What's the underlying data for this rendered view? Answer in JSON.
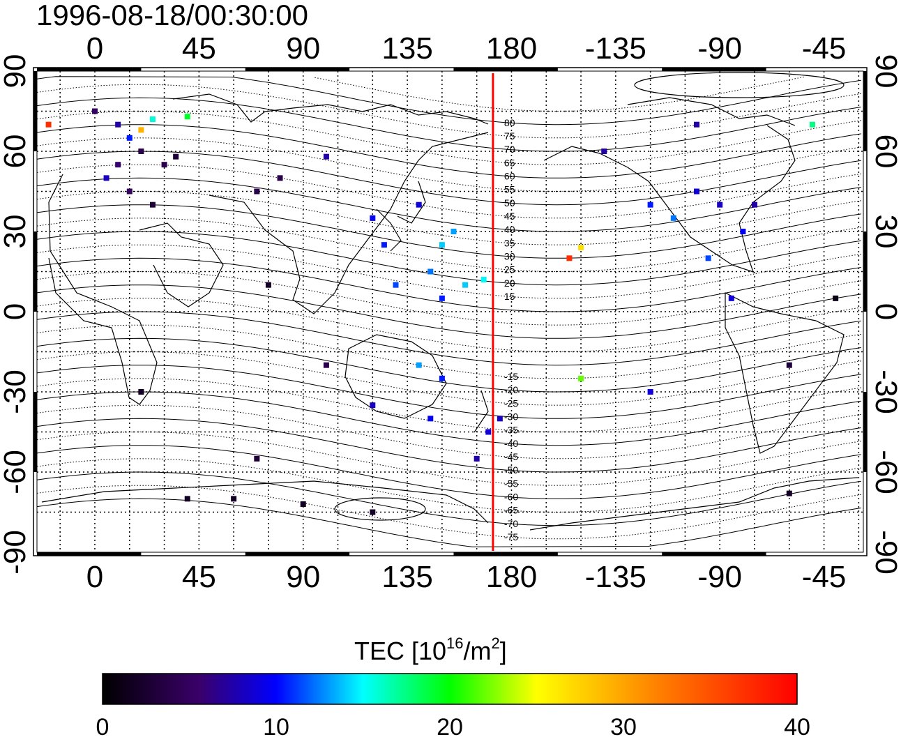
{
  "title": "1996-08-18/00:30:00",
  "axes": {
    "lon_ticks": [
      "0",
      "45",
      "90",
      "135",
      "180",
      "-135",
      "-90",
      "-45"
    ],
    "lat_ticks": [
      "90",
      "60",
      "30",
      "0",
      "-30",
      "-60",
      "-90"
    ],
    "lon_range": [
      -25,
      332
    ],
    "lat_range": [
      -90,
      90
    ],
    "grid": "dotted, 15 degree spacing"
  },
  "meridian_marker": {
    "longitude": 172,
    "color": "#ff0000"
  },
  "contour_labels": [
    "80",
    "75",
    "70",
    "65",
    "60",
    "55",
    "50",
    "45",
    "40",
    "35",
    "30",
    "25",
    "20",
    "15",
    "-15",
    "-20",
    "-25",
    "-30",
    "-35",
    "-40",
    "-45",
    "-50",
    "-55",
    "-60",
    "-65",
    "-70",
    "-75"
  ],
  "colorbar": {
    "label_main": "TEC  [10",
    "label_exp": "16",
    "label_unit": "/m",
    "label_exp2": "2",
    "label_end": "]",
    "ticks": [
      "0",
      "10",
      "20",
      "30",
      "40"
    ],
    "range": [
      0,
      40
    ],
    "colors": [
      "#000000",
      "#3a006a",
      "#0000ff",
      "#00ffff",
      "#00ff00",
      "#ffff00",
      "#ff8000",
      "#ff0000"
    ]
  },
  "chart_data": {
    "type": "scatter",
    "title": "1996-08-18/00:30:00",
    "quantity": "TEC [10^16/m^2]",
    "points": [
      {
        "lon": 0,
        "lat": 75,
        "tec": 5
      },
      {
        "lon": 10,
        "lat": 70,
        "tec": 8
      },
      {
        "lon": 15,
        "lat": 65,
        "tec": 12
      },
      {
        "lon": 20,
        "lat": 60,
        "tec": 4
      },
      {
        "lon": 10,
        "lat": 55,
        "tec": 6
      },
      {
        "lon": 5,
        "lat": 50,
        "tec": 9
      },
      {
        "lon": 15,
        "lat": 45,
        "tec": 5
      },
      {
        "lon": 25,
        "lat": 40,
        "tec": 3
      },
      {
        "lon": 20,
        "lat": 68,
        "tec": 32
      },
      {
        "lon": 25,
        "lat": 72,
        "tec": 18
      },
      {
        "lon": 40,
        "lat": 73,
        "tec": 22
      },
      {
        "lon": 30,
        "lat": 55,
        "tec": 4
      },
      {
        "lon": 35,
        "lat": 58,
        "tec": 3
      },
      {
        "lon": 70,
        "lat": 45,
        "tec": 4
      },
      {
        "lon": 80,
        "lat": 50,
        "tec": 4
      },
      {
        "lon": 75,
        "lat": 10,
        "tec": 2
      },
      {
        "lon": 100,
        "lat": 58,
        "tec": 8
      },
      {
        "lon": 140,
        "lat": 40,
        "tec": 10
      },
      {
        "lon": 120,
        "lat": 35,
        "tec": 11
      },
      {
        "lon": 125,
        "lat": 25,
        "tec": 12
      },
      {
        "lon": 150,
        "lat": 25,
        "tec": 16
      },
      {
        "lon": 155,
        "lat": 30,
        "tec": 15
      },
      {
        "lon": 145,
        "lat": 15,
        "tec": 14
      },
      {
        "lon": 130,
        "lat": 10,
        "tec": 13
      },
      {
        "lon": 160,
        "lat": 10,
        "tec": 16
      },
      {
        "lon": 168,
        "lat": 12,
        "tec": 17
      },
      {
        "lon": 150,
        "lat": 5,
        "tec": 12
      },
      {
        "lon": 140,
        "lat": -20,
        "tec": 15
      },
      {
        "lon": 150,
        "lat": -25,
        "tec": 12
      },
      {
        "lon": 120,
        "lat": -35,
        "tec": 9
      },
      {
        "lon": 145,
        "lat": -40,
        "tec": 11
      },
      {
        "lon": 170,
        "lat": -45,
        "tec": 10
      },
      {
        "lon": 175,
        "lat": -40,
        "tec": 9
      },
      {
        "lon": 165,
        "lat": -55,
        "tec": 8
      },
      {
        "lon": 100,
        "lat": -20,
        "tec": 4
      },
      {
        "lon": 70,
        "lat": -55,
        "tec": 3
      },
      {
        "lon": 60,
        "lat": -70,
        "tec": 2
      },
      {
        "lon": 90,
        "lat": -72,
        "tec": 2
      },
      {
        "lon": 120,
        "lat": -75,
        "tec": 2
      },
      {
        "lon": 40,
        "lat": -70,
        "tec": 2
      },
      {
        "lon": 20,
        "lat": -30,
        "tec": 2
      },
      {
        "lon": -155,
        "lat": 20,
        "tec": 38
      },
      {
        "lon": -150,
        "lat": 24,
        "tec": 30
      },
      {
        "lon": -150,
        "lat": -25,
        "tec": 25
      },
      {
        "lon": -110,
        "lat": 35,
        "tec": 14
      },
      {
        "lon": -120,
        "lat": 40,
        "tec": 12
      },
      {
        "lon": -100,
        "lat": 45,
        "tec": 10
      },
      {
        "lon": -90,
        "lat": 40,
        "tec": 9
      },
      {
        "lon": -75,
        "lat": 40,
        "tec": 8
      },
      {
        "lon": -80,
        "lat": 30,
        "tec": 11
      },
      {
        "lon": -95,
        "lat": 20,
        "tec": 13
      },
      {
        "lon": -85,
        "lat": 5,
        "tec": 10
      },
      {
        "lon": -120,
        "lat": -30,
        "tec": 10
      },
      {
        "lon": -60,
        "lat": -20,
        "tec": 3
      },
      {
        "lon": -60,
        "lat": -68,
        "tec": 2
      },
      {
        "lon": -50,
        "lat": 70,
        "tec": 20
      },
      {
        "lon": -20,
        "lat": 70,
        "tec": 38
      },
      {
        "lon": -100,
        "lat": 70,
        "tec": 8
      },
      {
        "lon": -140,
        "lat": 60,
        "tec": 8
      },
      {
        "lon": -40,
        "lat": 5,
        "tec": 1
      }
    ]
  }
}
